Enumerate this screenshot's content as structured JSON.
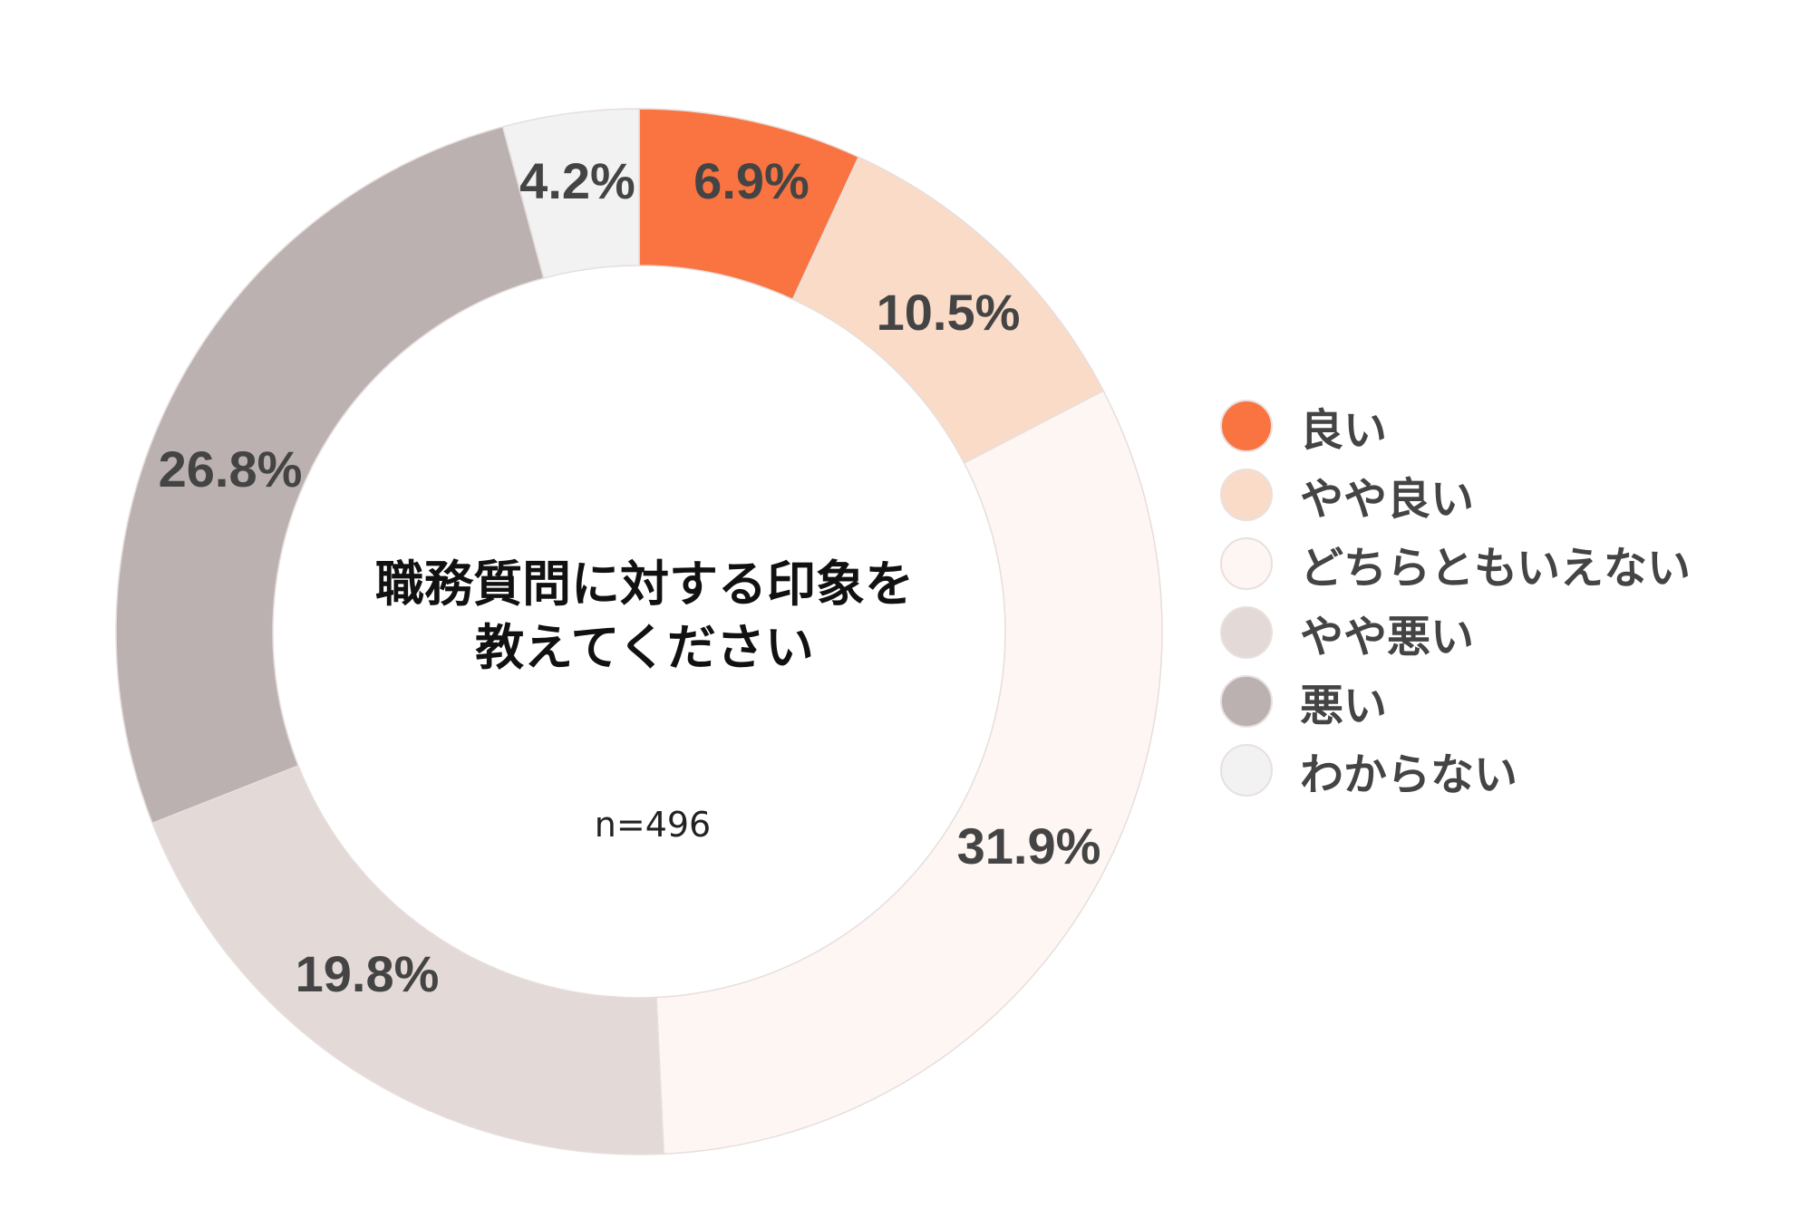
{
  "chart_data": {
    "type": "pie",
    "donut": true,
    "title": "職務質問に対する印象を教えてください",
    "title_lines": [
      "職務質問に対する印象を",
      "教えてください"
    ],
    "sample_size": "n=496",
    "categories": [
      "良い",
      "やや良い",
      "どちらともいえない",
      "やや悪い",
      "悪い",
      "わからない"
    ],
    "values": [
      6.9,
      10.5,
      31.9,
      19.8,
      26.8,
      4.2
    ],
    "data_labels": [
      "6.9%",
      "10.5%",
      "31.9%",
      "19.8%",
      "26.8%",
      "4.2%"
    ],
    "colors": [
      "#F97441",
      "#FADBC8",
      "#FDF6F3",
      "#E3DAD8",
      "#BAB1B0",
      "#F2F2F2"
    ],
    "legend_position": "right",
    "start": "top, clockwise"
  }
}
